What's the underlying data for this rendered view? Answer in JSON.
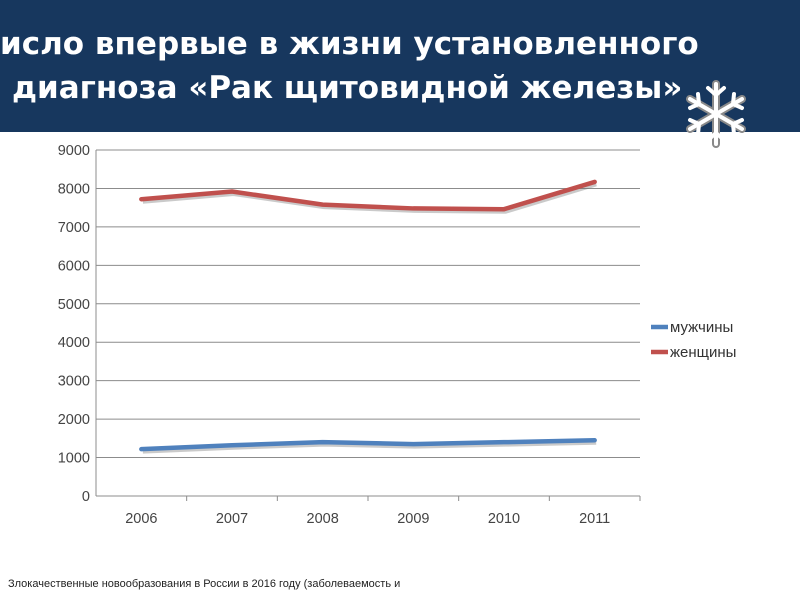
{
  "header": {
    "title_line1": "исло впервые в жизни установленного",
    "title_line2": "диагноза «Рак щитовидной железы»",
    "background_color": "#17375e",
    "decoration_icon": "snowflake-icon"
  },
  "chart_data": {
    "type": "line",
    "title": "",
    "xlabel": "",
    "ylabel": "",
    "categories": [
      "2006",
      "2007",
      "2008",
      "2009",
      "2010",
      "2011"
    ],
    "yticks": [
      "0",
      "1000",
      "2000",
      "3000",
      "4000",
      "5000",
      "6000",
      "7000",
      "8000",
      "9000"
    ],
    "ylim": [
      0,
      9000
    ],
    "grid": true,
    "legend_position": "right",
    "series": [
      {
        "name": "мужчины",
        "color": "#4f81bd",
        "values": [
          1220,
          1320,
          1400,
          1350,
          1400,
          1450
        ]
      },
      {
        "name": "женщины",
        "color": "#c0504d",
        "values": [
          7720,
          7920,
          7580,
          7480,
          7460,
          8170
        ]
      }
    ]
  },
  "footer": {
    "source_text": "Злокачественные новообразования в России в 2016 году (заболеваемость и"
  }
}
